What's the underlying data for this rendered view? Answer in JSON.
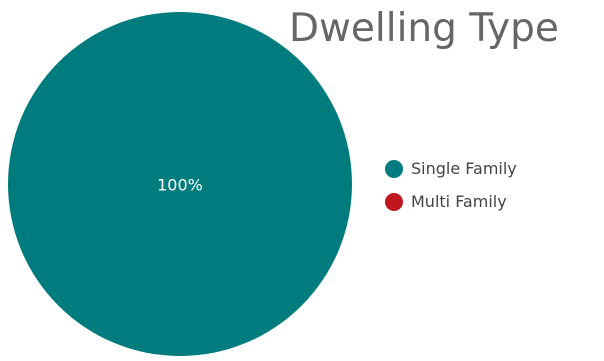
{
  "chart_data": {
    "type": "pie",
    "title": "Dwelling Type",
    "categories": [
      "Single Family",
      "Multi Family"
    ],
    "values": [
      100,
      0
    ],
    "colors": [
      "#007b7e",
      "#c0171e"
    ],
    "data_labels": [
      "100%"
    ],
    "legend_position": "right"
  }
}
